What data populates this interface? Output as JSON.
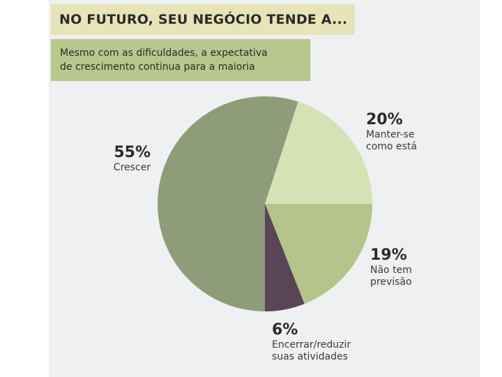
{
  "header": {
    "title": "NO FUTURO, SEU NEGÓCIO TENDE A...",
    "subtitle_line1": "Mesmo com as dificuldades, a expectativa",
    "subtitle_line2": "de crescimento continua para a maioria"
  },
  "chart_data": {
    "type": "pie",
    "slices": [
      {
        "value": 20,
        "percent_label": "20%",
        "label_lines": [
          "Manter-se",
          "como está"
        ],
        "color": "#d6e2b6"
      },
      {
        "value": 19,
        "percent_label": "19%",
        "label_lines": [
          "Não tem",
          "previsão"
        ],
        "color": "#b4c48a"
      },
      {
        "value": 6,
        "percent_label": "6%",
        "label_lines": [
          "Encerrar/reduzir",
          "suas atividades"
        ],
        "color": "#5a4556"
      },
      {
        "value": 55,
        "percent_label": "55%",
        "label_lines": [
          "Crescer"
        ],
        "color": "#8e9c7a"
      }
    ]
  }
}
